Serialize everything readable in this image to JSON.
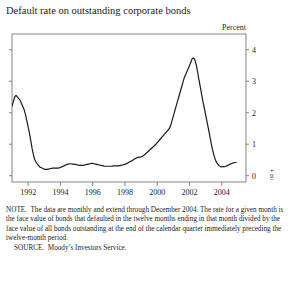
{
  "chart_data": {
    "type": "line",
    "title": "Default rate on outstanding corporate bonds",
    "ylabel": "Percent",
    "color": "#1a1a1a",
    "grid": false,
    "xlim": [
      1991.0,
      2005.5
    ],
    "ylim": [
      -0.2,
      4.5
    ],
    "xticks": [
      1992,
      1994,
      1996,
      1998,
      2000,
      2002,
      2004
    ],
    "yticks": [
      0,
      1,
      2,
      3,
      4
    ],
    "x": [
      1991.0,
      1991.083,
      1991.167,
      1991.25,
      1991.333,
      1991.417,
      1991.5,
      1991.583,
      1991.667,
      1991.75,
      1991.833,
      1991.917,
      1992.0,
      1992.083,
      1992.167,
      1992.25,
      1992.333,
      1992.417,
      1992.5,
      1992.583,
      1992.667,
      1992.75,
      1992.833,
      1992.917,
      1993.0,
      1993.083,
      1993.167,
      1993.25,
      1993.333,
      1993.417,
      1993.5,
      1993.583,
      1993.667,
      1993.75,
      1993.833,
      1993.917,
      1994.0,
      1994.083,
      1994.167,
      1994.25,
      1994.333,
      1994.417,
      1994.5,
      1994.583,
      1994.667,
      1994.75,
      1994.833,
      1994.917,
      1995.0,
      1995.083,
      1995.167,
      1995.25,
      1995.333,
      1995.417,
      1995.5,
      1995.583,
      1995.667,
      1995.75,
      1995.833,
      1995.917,
      1996.0,
      1996.083,
      1996.167,
      1996.25,
      1996.333,
      1996.417,
      1996.5,
      1996.583,
      1996.667,
      1996.75,
      1996.833,
      1996.917,
      1997.0,
      1997.083,
      1997.167,
      1997.25,
      1997.333,
      1997.417,
      1997.5,
      1997.583,
      1997.667,
      1997.75,
      1997.833,
      1997.917,
      1998.0,
      1998.083,
      1998.167,
      1998.25,
      1998.333,
      1998.417,
      1998.5,
      1998.583,
      1998.667,
      1998.75,
      1998.833,
      1998.917,
      1999.0,
      1999.083,
      1999.167,
      1999.25,
      1999.333,
      1999.417,
      1999.5,
      1999.583,
      1999.667,
      1999.75,
      1999.833,
      1999.917,
      2000.0,
      2000.083,
      2000.167,
      2000.25,
      2000.333,
      2000.417,
      2000.5,
      2000.583,
      2000.667,
      2000.75,
      2000.833,
      2000.917,
      2001.0,
      2001.083,
      2001.167,
      2001.25,
      2001.333,
      2001.417,
      2001.5,
      2001.583,
      2001.667,
      2001.75,
      2001.833,
      2001.917,
      2002.0,
      2002.083,
      2002.167,
      2002.25,
      2002.333,
      2002.417,
      2002.5,
      2002.583,
      2002.667,
      2002.75,
      2002.833,
      2002.917,
      2003.0,
      2003.083,
      2003.167,
      2003.25,
      2003.333,
      2003.417,
      2003.5,
      2003.583,
      2003.667,
      2003.75,
      2003.833,
      2003.917,
      2004.0,
      2004.083,
      2004.167,
      2004.25,
      2004.333,
      2004.417,
      2004.5,
      2004.583,
      2004.667,
      2004.75,
      2004.833,
      2004.917
    ],
    "values": [
      2.2,
      2.35,
      2.5,
      2.55,
      2.5,
      2.45,
      2.4,
      2.3,
      2.2,
      2.1,
      1.95,
      1.75,
      1.55,
      1.35,
      1.1,
      0.85,
      0.65,
      0.5,
      0.42,
      0.36,
      0.31,
      0.27,
      0.25,
      0.23,
      0.21,
      0.2,
      0.2,
      0.21,
      0.22,
      0.23,
      0.24,
      0.24,
      0.24,
      0.24,
      0.24,
      0.25,
      0.26,
      0.28,
      0.3,
      0.32,
      0.34,
      0.36,
      0.37,
      0.38,
      0.38,
      0.37,
      0.37,
      0.36,
      0.35,
      0.34,
      0.33,
      0.33,
      0.33,
      0.33,
      0.34,
      0.35,
      0.36,
      0.37,
      0.38,
      0.39,
      0.39,
      0.38,
      0.37,
      0.36,
      0.35,
      0.34,
      0.33,
      0.32,
      0.31,
      0.3,
      0.3,
      0.3,
      0.3,
      0.3,
      0.3,
      0.31,
      0.31,
      0.31,
      0.31,
      0.31,
      0.32,
      0.33,
      0.34,
      0.35,
      0.36,
      0.38,
      0.4,
      0.43,
      0.45,
      0.47,
      0.5,
      0.53,
      0.55,
      0.57,
      0.58,
      0.59,
      0.6,
      0.62,
      0.65,
      0.68,
      0.72,
      0.76,
      0.8,
      0.84,
      0.88,
      0.92,
      0.96,
      1.0,
      1.05,
      1.1,
      1.15,
      1.2,
      1.25,
      1.3,
      1.35,
      1.4,
      1.45,
      1.5,
      1.6,
      1.75,
      1.9,
      2.05,
      2.2,
      2.35,
      2.5,
      2.65,
      2.8,
      2.95,
      3.1,
      3.2,
      3.3,
      3.4,
      3.5,
      3.6,
      3.72,
      3.74,
      3.68,
      3.52,
      3.3,
      3.05,
      2.82,
      2.58,
      2.35,
      2.15,
      1.93,
      1.72,
      1.5,
      1.28,
      1.06,
      0.85,
      0.68,
      0.53,
      0.43,
      0.37,
      0.32,
      0.29,
      0.28,
      0.29,
      0.29,
      0.3,
      0.32,
      0.34,
      0.36,
      0.38,
      0.4,
      0.41,
      0.42,
      0.42
    ],
    "annotations": [
      {
        "text": "+",
        "y": 0.15
      },
      {
        "text": "0",
        "y": 0.0
      },
      {
        "text": "–",
        "y": -0.1
      }
    ],
    "note": "NOTE.  The data are monthly and extend through December 2004. The rate for a given month is the face value of bonds that defaulted in the twelve months ending in that month divided by the face value of all bonds outstanding at the end of the calendar quarter immediately preceding the twelve-month period.",
    "source": "SOURCE.  Moody’s Investors Service."
  }
}
